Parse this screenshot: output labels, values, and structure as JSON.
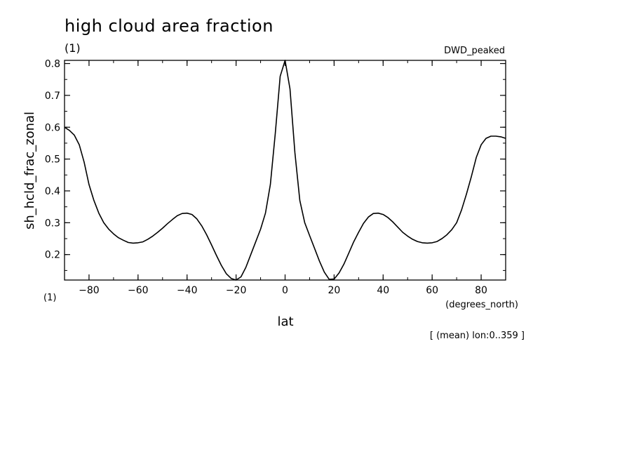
{
  "chart_data": {
    "type": "line",
    "title": "high cloud area fraction",
    "units": "(1)",
    "model": "DWD_peaked",
    "xlabel": "lat",
    "x_units": "(degrees_north)",
    "ylabel": "sh_hcld_frac_zonal",
    "y_units": "(1)",
    "note": "[ (mean) lon:0..359 ]",
    "xlim": [
      -90,
      90
    ],
    "ylim": [
      0.12,
      0.81
    ],
    "x_ticks": [
      -80,
      -60,
      -40,
      -20,
      0,
      20,
      40,
      60,
      80
    ],
    "y_ticks": [
      0.2,
      0.3,
      0.4,
      0.5,
      0.6,
      0.7,
      0.8
    ],
    "x_tick_labels": [
      "−80",
      "−60",
      "−40",
      "−20",
      "0",
      "20",
      "40",
      "60",
      "80"
    ],
    "y_tick_labels": [
      "0.2",
      "0.3",
      "0.4",
      "0.5",
      "0.6",
      "0.7",
      "0.8"
    ],
    "grid": false,
    "series": [
      {
        "x": [
          -90,
          -88,
          -86,
          -84,
          -82,
          -80,
          -78,
          -76,
          -74,
          -72,
          -70,
          -68,
          -66,
          -64,
          -62,
          -60,
          -58,
          -56,
          -54,
          -52,
          -50,
          -48,
          -46,
          -44,
          -42,
          -40,
          -38,
          -36,
          -34,
          -32,
          -30,
          -28,
          -26,
          -24,
          -22,
          -20,
          -18,
          -16,
          -14,
          -12,
          -10,
          -8,
          -6,
          -4,
          -2,
          0,
          2,
          4,
          6,
          8,
          10,
          12,
          14,
          16,
          18,
          20,
          22,
          24,
          26,
          28,
          30,
          32,
          34,
          36,
          38,
          40,
          42,
          44,
          46,
          48,
          50,
          52,
          54,
          56,
          58,
          60,
          62,
          64,
          66,
          68,
          70,
          72,
          74,
          76,
          78,
          80,
          82,
          84,
          86,
          88,
          90
        ],
        "y": [
          0.6,
          0.59,
          0.575,
          0.545,
          0.49,
          0.42,
          0.37,
          0.33,
          0.3,
          0.28,
          0.265,
          0.253,
          0.245,
          0.238,
          0.236,
          0.237,
          0.24,
          0.248,
          0.258,
          0.27,
          0.283,
          0.297,
          0.31,
          0.322,
          0.329,
          0.33,
          0.326,
          0.312,
          0.29,
          0.262,
          0.23,
          0.197,
          0.166,
          0.14,
          0.125,
          0.12,
          0.13,
          0.16,
          0.2,
          0.24,
          0.28,
          0.33,
          0.42,
          0.58,
          0.76,
          0.81,
          0.72,
          0.52,
          0.37,
          0.3,
          0.26,
          0.22,
          0.18,
          0.145,
          0.122,
          0.123,
          0.142,
          0.17,
          0.205,
          0.24,
          0.27,
          0.298,
          0.318,
          0.329,
          0.33,
          0.326,
          0.316,
          0.302,
          0.286,
          0.27,
          0.258,
          0.248,
          0.241,
          0.237,
          0.236,
          0.237,
          0.241,
          0.25,
          0.262,
          0.278,
          0.3,
          0.34,
          0.39,
          0.445,
          0.505,
          0.545,
          0.565,
          0.572,
          0.572,
          0.57,
          0.565
        ]
      }
    ]
  }
}
